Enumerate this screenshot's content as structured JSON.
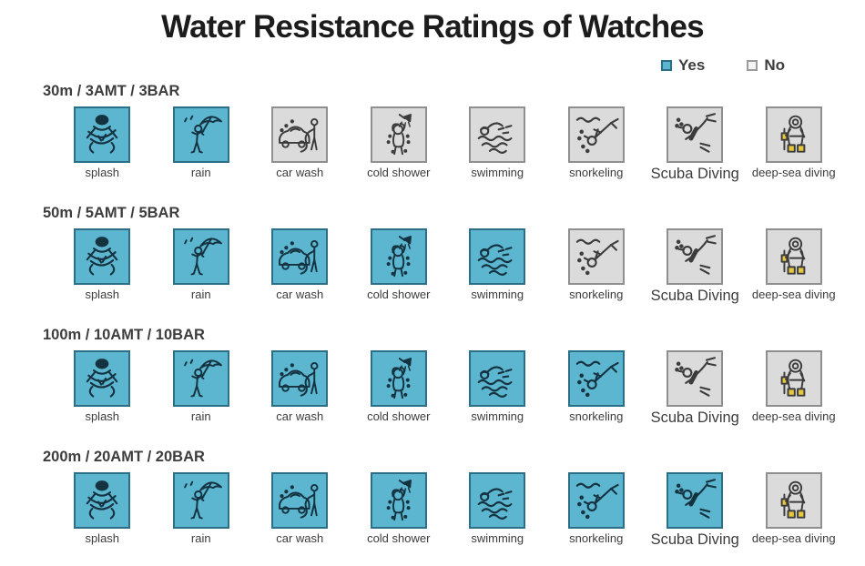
{
  "title": "Water Resistance Ratings of Watches",
  "legend": {
    "yes_label": "Yes",
    "no_label": "No"
  },
  "colors": {
    "yes_fill": "#5cb6d0",
    "yes_border": "#2b6e86",
    "no_fill": "#dbdbdb",
    "no_border": "#8f8f8f",
    "icon_dark": "#14323f",
    "icon_gray": "#3c3c3c",
    "accent_yellow": "#e7c93f"
  },
  "columns": [
    {
      "label": "splash",
      "icon": "splash-icon",
      "symbol": "sym-splash"
    },
    {
      "label": "rain",
      "icon": "rain-umbrella-icon",
      "symbol": "sym-rain"
    },
    {
      "label": "car wash",
      "icon": "car-wash-icon",
      "symbol": "sym-carwash"
    },
    {
      "label": "cold shower",
      "icon": "cold-shower-icon",
      "symbol": "sym-shower"
    },
    {
      "label": "swimming",
      "icon": "swimming-icon",
      "symbol": "sym-swim"
    },
    {
      "label": "snorkeling",
      "icon": "snorkeling-icon",
      "symbol": "sym-snorkel"
    },
    {
      "label": "Scuba Diving",
      "icon": "scuba-diving-icon",
      "symbol": "sym-scuba",
      "large": true
    },
    {
      "label": "deep-sea diving",
      "icon": "deep-sea-diving-icon",
      "symbol": "sym-deepsea"
    }
  ],
  "sections": [
    {
      "header": "30m / 3AMT / 3BAR",
      "ratings": [
        "yes",
        "yes",
        "no",
        "no",
        "no",
        "no",
        "no",
        "no"
      ]
    },
    {
      "header": "50m / 5AMT / 5BAR",
      "ratings": [
        "yes",
        "yes",
        "yes",
        "yes",
        "yes",
        "no",
        "no",
        "no"
      ]
    },
    {
      "header": "100m / 10AMT / 10BAR",
      "ratings": [
        "yes",
        "yes",
        "yes",
        "yes",
        "yes",
        "yes",
        "no",
        "no"
      ]
    },
    {
      "header": "200m / 20AMT / 20BAR",
      "ratings": [
        "yes",
        "yes",
        "yes",
        "yes",
        "yes",
        "yes",
        "yes",
        "no"
      ]
    }
  ],
  "chart_data": {
    "type": "table",
    "title": "Water Resistance Ratings of Watches",
    "columns": [
      "splash",
      "rain",
      "car wash",
      "cold shower",
      "swimming",
      "snorkeling",
      "Scuba Diving",
      "deep-sea diving"
    ],
    "rows": [
      "30m / 3AMT / 3BAR",
      "50m / 5AMT / 5BAR",
      "100m / 10AMT / 10BAR",
      "200m / 20AMT / 20BAR"
    ],
    "values": [
      [
        "Yes",
        "Yes",
        "No",
        "No",
        "No",
        "No",
        "No",
        "No"
      ],
      [
        "Yes",
        "Yes",
        "Yes",
        "Yes",
        "Yes",
        "No",
        "No",
        "No"
      ],
      [
        "Yes",
        "Yes",
        "Yes",
        "Yes",
        "Yes",
        "Yes",
        "No",
        "No"
      ],
      [
        "Yes",
        "Yes",
        "Yes",
        "Yes",
        "Yes",
        "Yes",
        "Yes",
        "No"
      ]
    ],
    "legend": [
      "Yes",
      "No"
    ],
    "legend_position": "top-right",
    "cell_color_yes": "#5cb6d0",
    "cell_color_no": "#dbdbdb"
  }
}
